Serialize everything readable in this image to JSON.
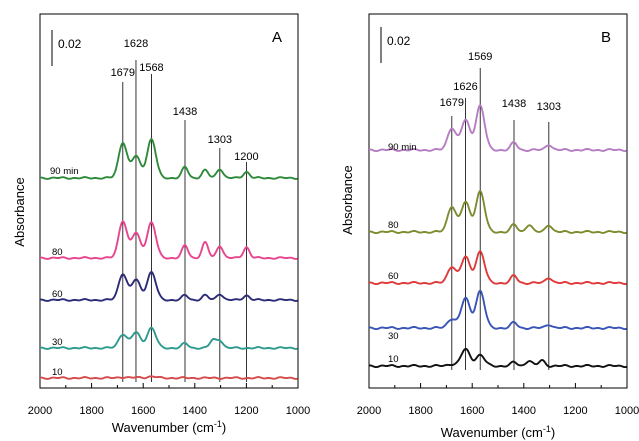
{
  "chart_data": [
    {
      "panel": "A",
      "type": "line",
      "xlabel": "Wavenumber (cm",
      "xlabel_sup": "-1",
      "xlabel_end": ")",
      "ylabel": "Absorbance",
      "xlim": [
        2000,
        1000
      ],
      "xticks": [
        "2000",
        "1800",
        "1600",
        "1400",
        "1200",
        "1000"
      ],
      "scale_bar": "0.02",
      "peaks": [
        "1679",
        "1628",
        "1568",
        "1438",
        "1303",
        "1200"
      ],
      "series": [
        {
          "name": "10",
          "color": "#d64b4b",
          "peaks": [
            [
              1679,
              0.6
            ],
            [
              1620,
              0.3
            ],
            [
              1568,
              1.0
            ]
          ]
        },
        {
          "name": "30",
          "color": "#2f9a8e",
          "peaks": [
            [
              1679,
              9
            ],
            [
              1628,
              10
            ],
            [
              1568,
              13
            ],
            [
              1438,
              3
            ],
            [
              1330,
              5
            ],
            [
              1303,
              5
            ]
          ]
        },
        {
          "name": "60",
          "color": "#2c2c78",
          "peaks": [
            [
              1679,
              17
            ],
            [
              1628,
              13
            ],
            [
              1568,
              18
            ],
            [
              1438,
              3
            ],
            [
              1360,
              3
            ],
            [
              1303,
              4
            ],
            [
              1200,
              3
            ]
          ]
        },
        {
          "name": "80",
          "color": "#e8458f",
          "peaks": [
            [
              1679,
              24
            ],
            [
              1628,
              16
            ],
            [
              1568,
              23
            ],
            [
              1438,
              8
            ],
            [
              1360,
              10
            ],
            [
              1303,
              8
            ],
            [
              1200,
              7
            ]
          ]
        },
        {
          "name": "90 min",
          "color": "#2f8a3c",
          "peaks": [
            [
              1679,
              23
            ],
            [
              1628,
              14
            ],
            [
              1568,
              25
            ],
            [
              1438,
              7
            ],
            [
              1360,
              5
            ],
            [
              1303,
              6
            ],
            [
              1200,
              4
            ]
          ]
        }
      ]
    },
    {
      "panel": "B",
      "type": "line",
      "xlabel": "Wavenumber (cm",
      "xlabel_sup": "-1",
      "xlabel_end": ")",
      "ylabel": "Absorbance",
      "xlim": [
        2000,
        1000
      ],
      "xticks": [
        "2000",
        "1800",
        "1600",
        "1400",
        "1200",
        "1000"
      ],
      "scale_bar": "0.02",
      "peaks": [
        "1679",
        "1626",
        "1569",
        "1438",
        "1303"
      ],
      "series": [
        {
          "name": "10",
          "color": "#111111",
          "peaks": [
            [
              1679,
              1
            ],
            [
              1626,
              9
            ],
            [
              1569,
              6
            ],
            [
              1438,
              2
            ],
            [
              1380,
              3
            ],
            [
              1330,
              3
            ]
          ]
        },
        {
          "name": "30",
          "color": "#3a55b8",
          "peaks": [
            [
              1679,
              5
            ],
            [
              1626,
              16
            ],
            [
              1569,
              20
            ],
            [
              1438,
              3
            ],
            [
              1303,
              2
            ]
          ]
        },
        {
          "name": "60",
          "color": "#e03a3a",
          "peaks": [
            [
              1679,
              9
            ],
            [
              1626,
              14
            ],
            [
              1569,
              17
            ],
            [
              1438,
              4
            ],
            [
              1303,
              3
            ]
          ]
        },
        {
          "name": "80",
          "color": "#7d8c2e",
          "peaks": [
            [
              1679,
              14
            ],
            [
              1626,
              16
            ],
            [
              1569,
              22
            ],
            [
              1438,
              4
            ],
            [
              1380,
              4
            ],
            [
              1303,
              4
            ]
          ]
        },
        {
          "name": "90 min",
          "color": "#b67dc4",
          "peaks": [
            [
              1679,
              12
            ],
            [
              1626,
              16
            ],
            [
              1569,
              24
            ],
            [
              1438,
              4
            ],
            [
              1303,
              3
            ]
          ]
        }
      ]
    }
  ]
}
